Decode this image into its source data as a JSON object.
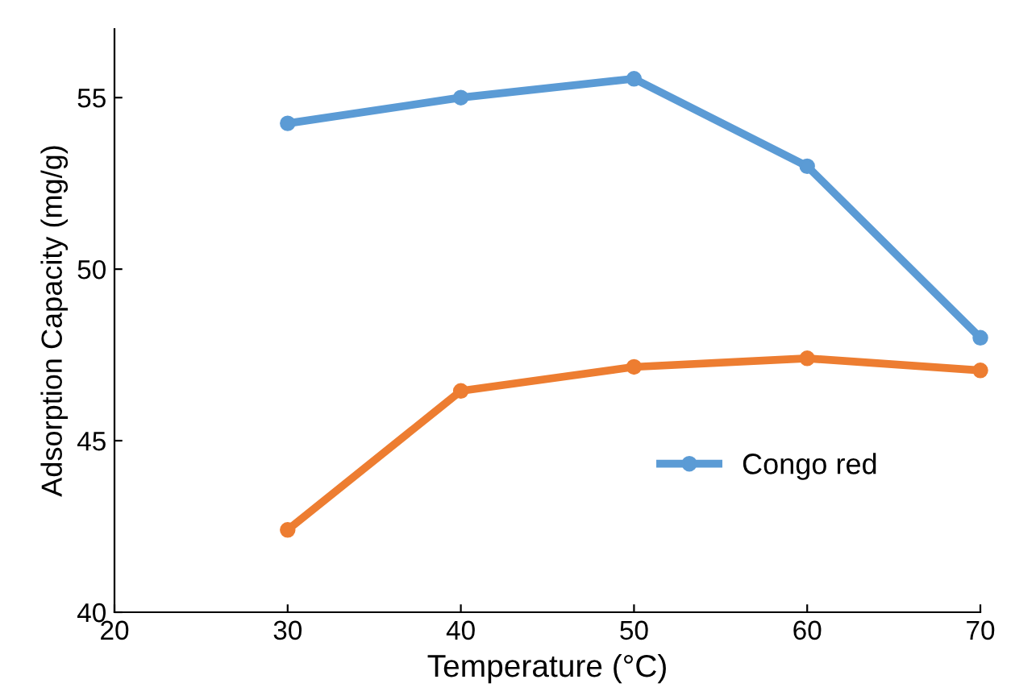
{
  "chart_data": {
    "type": "line",
    "xlabel": "Temperature (°C)",
    "ylabel": "Adsorption Capacity (mg/g)",
    "x": [
      30,
      40,
      50,
      60,
      70
    ],
    "series": [
      {
        "name": "Congo red",
        "color": "#5b9bd5",
        "values": [
          54.25,
          55.0,
          55.55,
          53.0,
          48.0
        ]
      },
      {
        "color": "#ed7d31",
        "values": [
          42.4,
          46.45,
          47.15,
          47.4,
          47.05
        ]
      }
    ],
    "xlim": [
      20,
      70
    ],
    "xticks": [
      20,
      30,
      40,
      50,
      60,
      70
    ],
    "ylim": [
      40,
      57
    ],
    "yticks": [
      40,
      45,
      50,
      55
    ],
    "grid": false,
    "legend": "right",
    "marker": "circle",
    "line_style": "solid"
  }
}
